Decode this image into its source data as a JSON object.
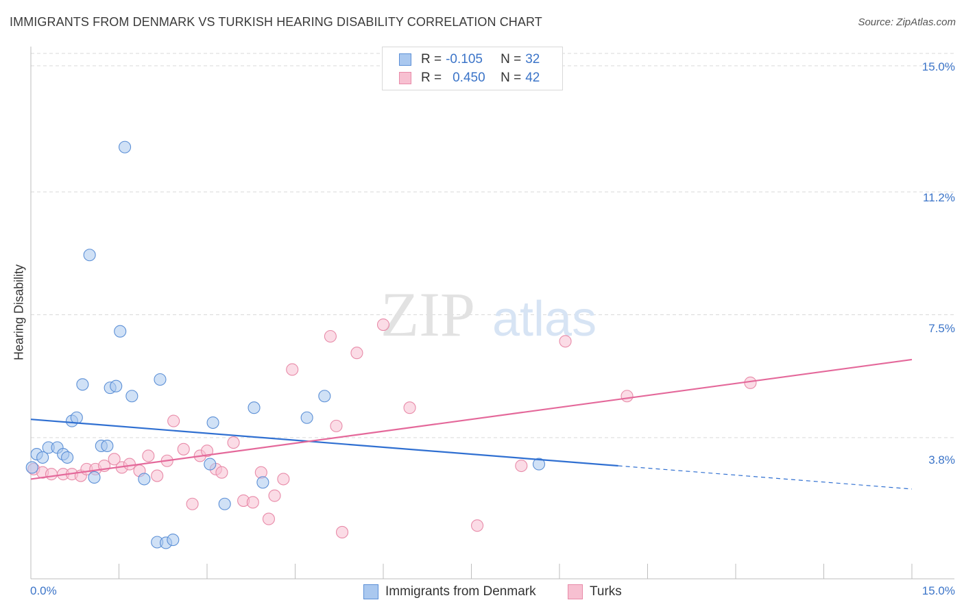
{
  "title": "IMMIGRANTS FROM DENMARK VS TURKISH HEARING DISABILITY CORRELATION CHART",
  "source": "Source: ZipAtlas.com",
  "watermark": {
    "zip": "ZIP",
    "atlas": "atlas"
  },
  "legend": {
    "rows": [
      {
        "r_label": "R =",
        "r_value": "-0.105",
        "n_label": "N =",
        "n_value": "32"
      },
      {
        "r_label": "R =",
        "r_value": "0.450",
        "n_label": "N =",
        "n_value": "42"
      }
    ]
  },
  "colors": {
    "denmark_fill": "#aac8ef",
    "denmark_stroke": "#5b8fd6",
    "denmark_line": "#2f6fd1",
    "turks_fill": "#f7c0d1",
    "turks_stroke": "#e88aa8",
    "turks_line": "#e4689a",
    "tick_text": "#3b74c8",
    "grid": "#d9d9d9"
  },
  "chart_data": {
    "type": "scatter",
    "title": "IMMIGRANTS FROM DENMARK VS TURKISH HEARING DISABILITY CORRELATION CHART",
    "xlabel": "",
    "ylabel": "Hearing Disability",
    "xlim": [
      0,
      15
    ],
    "ylim": [
      0,
      15.5
    ],
    "x_tick_labels": [
      "0.0%",
      "15.0%"
    ],
    "y_ticks": [
      3.8,
      7.5,
      11.2,
      15.0
    ],
    "y_tick_labels": [
      "3.8%",
      "7.5%",
      "11.2%",
      "15.0%"
    ],
    "grid": "horizontal dashed",
    "legend_position": "bottom",
    "series": [
      {
        "name": "Immigrants from Denmark",
        "r": -0.105,
        "n": 32,
        "points": [
          [
            0.02,
            2.9
          ],
          [
            0.1,
            3.3
          ],
          [
            0.2,
            3.2
          ],
          [
            0.3,
            3.5
          ],
          [
            0.45,
            3.5
          ],
          [
            0.55,
            3.3
          ],
          [
            0.62,
            3.2
          ],
          [
            0.7,
            4.3
          ],
          [
            0.78,
            4.4
          ],
          [
            0.88,
            5.4
          ],
          [
            1.0,
            9.3
          ],
          [
            1.08,
            2.6
          ],
          [
            1.2,
            3.55
          ],
          [
            1.3,
            3.55
          ],
          [
            1.35,
            5.3
          ],
          [
            1.45,
            5.35
          ],
          [
            1.52,
            7.0
          ],
          [
            1.6,
            12.55
          ],
          [
            1.72,
            5.05
          ],
          [
            1.93,
            2.55
          ],
          [
            2.15,
            0.65
          ],
          [
            2.2,
            5.55
          ],
          [
            2.3,
            0.63
          ],
          [
            2.42,
            0.72
          ],
          [
            3.05,
            3.0
          ],
          [
            3.1,
            4.25
          ],
          [
            3.3,
            1.8
          ],
          [
            3.8,
            4.7
          ],
          [
            3.95,
            2.45
          ],
          [
            4.7,
            4.4
          ],
          [
            5.0,
            5.05
          ],
          [
            8.65,
            3.0
          ]
        ],
        "trend": {
          "x0": 0.0,
          "y0": 4.35,
          "x1": 10.0,
          "y1": 2.95,
          "dash_to_x": 15.0,
          "dash_to_y": 2.25
        }
      },
      {
        "name": "Turks",
        "r": 0.45,
        "n": 42,
        "points": [
          [
            0.05,
            2.85
          ],
          [
            0.2,
            2.75
          ],
          [
            0.35,
            2.7
          ],
          [
            0.55,
            2.7
          ],
          [
            0.7,
            2.7
          ],
          [
            0.85,
            2.65
          ],
          [
            0.95,
            2.85
          ],
          [
            1.1,
            2.85
          ],
          [
            1.25,
            2.95
          ],
          [
            1.42,
            3.15
          ],
          [
            1.55,
            2.9
          ],
          [
            1.68,
            3.0
          ],
          [
            1.85,
            2.8
          ],
          [
            2.0,
            3.25
          ],
          [
            2.15,
            2.65
          ],
          [
            2.32,
            3.1
          ],
          [
            2.43,
            4.3
          ],
          [
            2.6,
            3.45
          ],
          [
            2.75,
            1.8
          ],
          [
            2.88,
            3.25
          ],
          [
            3.0,
            3.4
          ],
          [
            3.15,
            2.85
          ],
          [
            3.25,
            2.75
          ],
          [
            3.45,
            3.65
          ],
          [
            3.62,
            1.9
          ],
          [
            3.78,
            1.85
          ],
          [
            3.92,
            2.75
          ],
          [
            4.05,
            1.35
          ],
          [
            4.15,
            2.05
          ],
          [
            4.3,
            2.55
          ],
          [
            4.45,
            5.85
          ],
          [
            5.1,
            6.85
          ],
          [
            5.2,
            4.15
          ],
          [
            5.3,
            0.95
          ],
          [
            5.55,
            6.35
          ],
          [
            6.0,
            7.2
          ],
          [
            6.45,
            4.7
          ],
          [
            7.6,
            1.15
          ],
          [
            8.35,
            2.95
          ],
          [
            9.1,
            6.7
          ],
          [
            10.15,
            5.05
          ],
          [
            12.25,
            5.45
          ]
        ],
        "trend": {
          "x0": 0.0,
          "y0": 2.55,
          "x1": 15.0,
          "y1": 6.15
        }
      }
    ]
  }
}
